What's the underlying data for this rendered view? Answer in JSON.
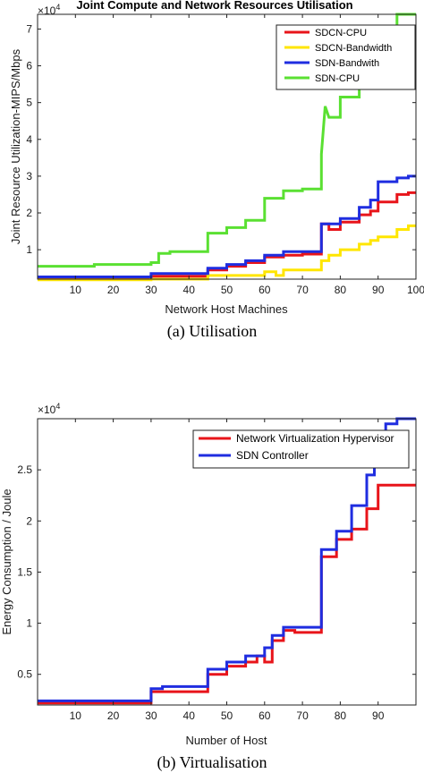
{
  "chart_data": [
    {
      "type": "line",
      "title": "Joint Compute and Network Resources Utilisation",
      "xlabel": "Network Host Machines",
      "ylabel": "Joint Resource Utilization-MIPS/Mbps",
      "y_multiplier": "×10",
      "y_multiplier_exp": "4",
      "caption": "(a)   Utilisation",
      "xlim": [
        0,
        100
      ],
      "ylim": [
        0.2,
        7.4
      ],
      "x_ticks": [
        "10",
        "20",
        "30",
        "40",
        "50",
        "60",
        "70",
        "80",
        "90",
        "100"
      ],
      "y_ticks": [
        "1",
        "2",
        "3",
        "4",
        "5",
        "6",
        "7"
      ],
      "grid": false,
      "legend_position": "top-right",
      "series": [
        {
          "name": "SDCN-CPU",
          "color": "#e8141a",
          "points": [
            [
              0,
              0.22
            ],
            [
              30,
              0.22
            ],
            [
              30,
              0.28
            ],
            [
              45,
              0.28
            ],
            [
              45,
              0.45
            ],
            [
              50,
              0.45
            ],
            [
              50,
              0.55
            ],
            [
              55,
              0.55
            ],
            [
              55,
              0.65
            ],
            [
              60,
              0.65
            ],
            [
              60,
              0.8
            ],
            [
              65,
              0.8
            ],
            [
              65,
              0.85
            ],
            [
              70,
              0.85
            ],
            [
              70,
              0.88
            ],
            [
              75,
              0.88
            ],
            [
              75,
              1.7
            ],
            [
              77,
              1.7
            ],
            [
              77,
              1.55
            ],
            [
              80,
              1.55
            ],
            [
              80,
              1.75
            ],
            [
              85,
              1.75
            ],
            [
              85,
              1.95
            ],
            [
              88,
              1.95
            ],
            [
              88,
              2.05
            ],
            [
              90,
              2.05
            ],
            [
              90,
              2.3
            ],
            [
              95,
              2.3
            ],
            [
              95,
              2.5
            ],
            [
              98,
              2.5
            ],
            [
              98,
              2.55
            ],
            [
              100,
              2.55
            ]
          ]
        },
        {
          "name": "SDCN-Bandwidth",
          "color": "#ffe600",
          "points": [
            [
              0,
              0.18
            ],
            [
              30,
              0.18
            ],
            [
              30,
              0.2
            ],
            [
              45,
              0.2
            ],
            [
              45,
              0.3
            ],
            [
              60,
              0.3
            ],
            [
              60,
              0.4
            ],
            [
              63,
              0.4
            ],
            [
              63,
              0.3
            ],
            [
              65,
              0.3
            ],
            [
              65,
              0.45
            ],
            [
              75,
              0.45
            ],
            [
              75,
              0.7
            ],
            [
              77,
              0.7
            ],
            [
              77,
              0.85
            ],
            [
              80,
              0.85
            ],
            [
              80,
              1.0
            ],
            [
              85,
              1.0
            ],
            [
              85,
              1.15
            ],
            [
              88,
              1.15
            ],
            [
              88,
              1.25
            ],
            [
              90,
              1.25
            ],
            [
              90,
              1.35
            ],
            [
              95,
              1.35
            ],
            [
              95,
              1.55
            ],
            [
              98,
              1.55
            ],
            [
              98,
              1.65
            ],
            [
              100,
              1.65
            ]
          ]
        },
        {
          "name": "SDN-Bandwith",
          "color": "#1f2de0",
          "points": [
            [
              0,
              0.26
            ],
            [
              30,
              0.26
            ],
            [
              30,
              0.35
            ],
            [
              45,
              0.35
            ],
            [
              45,
              0.5
            ],
            [
              50,
              0.5
            ],
            [
              50,
              0.6
            ],
            [
              55,
              0.6
            ],
            [
              55,
              0.7
            ],
            [
              60,
              0.7
            ],
            [
              60,
              0.85
            ],
            [
              65,
              0.85
            ],
            [
              65,
              0.95
            ],
            [
              75,
              0.95
            ],
            [
              75,
              1.7
            ],
            [
              80,
              1.7
            ],
            [
              80,
              1.85
            ],
            [
              85,
              1.85
            ],
            [
              85,
              2.15
            ],
            [
              88,
              2.15
            ],
            [
              88,
              2.35
            ],
            [
              90,
              2.35
            ],
            [
              90,
              2.85
            ],
            [
              95,
              2.85
            ],
            [
              95,
              2.95
            ],
            [
              98,
              2.95
            ],
            [
              98,
              3.0
            ],
            [
              100,
              3.0
            ]
          ]
        },
        {
          "name": "SDN-CPU",
          "color": "#5ae032",
          "points": [
            [
              0,
              0.55
            ],
            [
              15,
              0.55
            ],
            [
              15,
              0.6
            ],
            [
              30,
              0.6
            ],
            [
              30,
              0.65
            ],
            [
              32,
              0.65
            ],
            [
              32,
              0.9
            ],
            [
              35,
              0.9
            ],
            [
              35,
              0.95
            ],
            [
              45,
              0.95
            ],
            [
              45,
              1.45
            ],
            [
              50,
              1.45
            ],
            [
              50,
              1.6
            ],
            [
              55,
              1.6
            ],
            [
              55,
              1.8
            ],
            [
              60,
              1.8
            ],
            [
              60,
              2.4
            ],
            [
              65,
              2.4
            ],
            [
              65,
              2.6
            ],
            [
              70,
              2.6
            ],
            [
              70,
              2.65
            ],
            [
              75,
              2.65
            ],
            [
              75,
              3.6
            ],
            [
              76,
              4.9
            ],
            [
              77,
              4.6
            ],
            [
              80,
              4.6
            ],
            [
              80,
              5.15
            ],
            [
              85,
              5.15
            ],
            [
              85,
              5.55
            ],
            [
              88,
              5.55
            ],
            [
              88,
              5.6
            ],
            [
              90,
              5.6
            ],
            [
              90,
              6.0
            ],
            [
              95,
              6.0
            ],
            [
              95,
              7.4
            ],
            [
              100,
              7.4
            ]
          ]
        }
      ]
    },
    {
      "type": "line",
      "title": "",
      "xlabel": "Number of Host",
      "ylabel": "Energy Consumption / Joule",
      "y_multiplier": "×10",
      "y_multiplier_exp": "4",
      "caption": "(b) Virtualisation",
      "xlim": [
        0,
        100
      ],
      "ylim": [
        0.2,
        3.0
      ],
      "x_ticks": [
        "10",
        "20",
        "30",
        "40",
        "50",
        "60",
        "70",
        "80",
        "90"
      ],
      "y_ticks": [
        "0.5",
        "1",
        "1.5",
        "2",
        "2.5"
      ],
      "grid": false,
      "legend_position": "top-right",
      "series": [
        {
          "name": "Network Virtualization Hypervisor",
          "color": "#e8141a",
          "points": [
            [
              0,
              0.22
            ],
            [
              30,
              0.22
            ],
            [
              30,
              0.33
            ],
            [
              45,
              0.33
            ],
            [
              45,
              0.5
            ],
            [
              50,
              0.5
            ],
            [
              50,
              0.58
            ],
            [
              55,
              0.58
            ],
            [
              55,
              0.62
            ],
            [
              58,
              0.62
            ],
            [
              58,
              0.68
            ],
            [
              60,
              0.68
            ],
            [
              60,
              0.62
            ],
            [
              62,
              0.62
            ],
            [
              62,
              0.83
            ],
            [
              65,
              0.83
            ],
            [
              65,
              0.93
            ],
            [
              68,
              0.93
            ],
            [
              68,
              0.91
            ],
            [
              75,
              0.91
            ],
            [
              75,
              1.65
            ],
            [
              79,
              1.65
            ],
            [
              79,
              1.82
            ],
            [
              83,
              1.82
            ],
            [
              83,
              1.92
            ],
            [
              87,
              1.92
            ],
            [
              87,
              2.12
            ],
            [
              90,
              2.12
            ],
            [
              90,
              2.35
            ],
            [
              100,
              2.35
            ]
          ]
        },
        {
          "name": "SDN Controller",
          "color": "#1f2de0",
          "points": [
            [
              0,
              0.24
            ],
            [
              30,
              0.24
            ],
            [
              30,
              0.36
            ],
            [
              33,
              0.36
            ],
            [
              33,
              0.38
            ],
            [
              45,
              0.38
            ],
            [
              45,
              0.55
            ],
            [
              50,
              0.55
            ],
            [
              50,
              0.62
            ],
            [
              55,
              0.62
            ],
            [
              55,
              0.68
            ],
            [
              60,
              0.68
            ],
            [
              60,
              0.76
            ],
            [
              62,
              0.76
            ],
            [
              62,
              0.88
            ],
            [
              65,
              0.88
            ],
            [
              65,
              0.96
            ],
            [
              75,
              0.96
            ],
            [
              75,
              1.72
            ],
            [
              79,
              1.72
            ],
            [
              79,
              1.9
            ],
            [
              83,
              1.9
            ],
            [
              83,
              2.15
            ],
            [
              87,
              2.15
            ],
            [
              87,
              2.45
            ],
            [
              89,
              2.45
            ],
            [
              89,
              2.55
            ],
            [
              92,
              2.55
            ],
            [
              92,
              2.95
            ],
            [
              95,
              2.95
            ],
            [
              95,
              3.0
            ],
            [
              100,
              3.0
            ]
          ]
        }
      ]
    }
  ]
}
